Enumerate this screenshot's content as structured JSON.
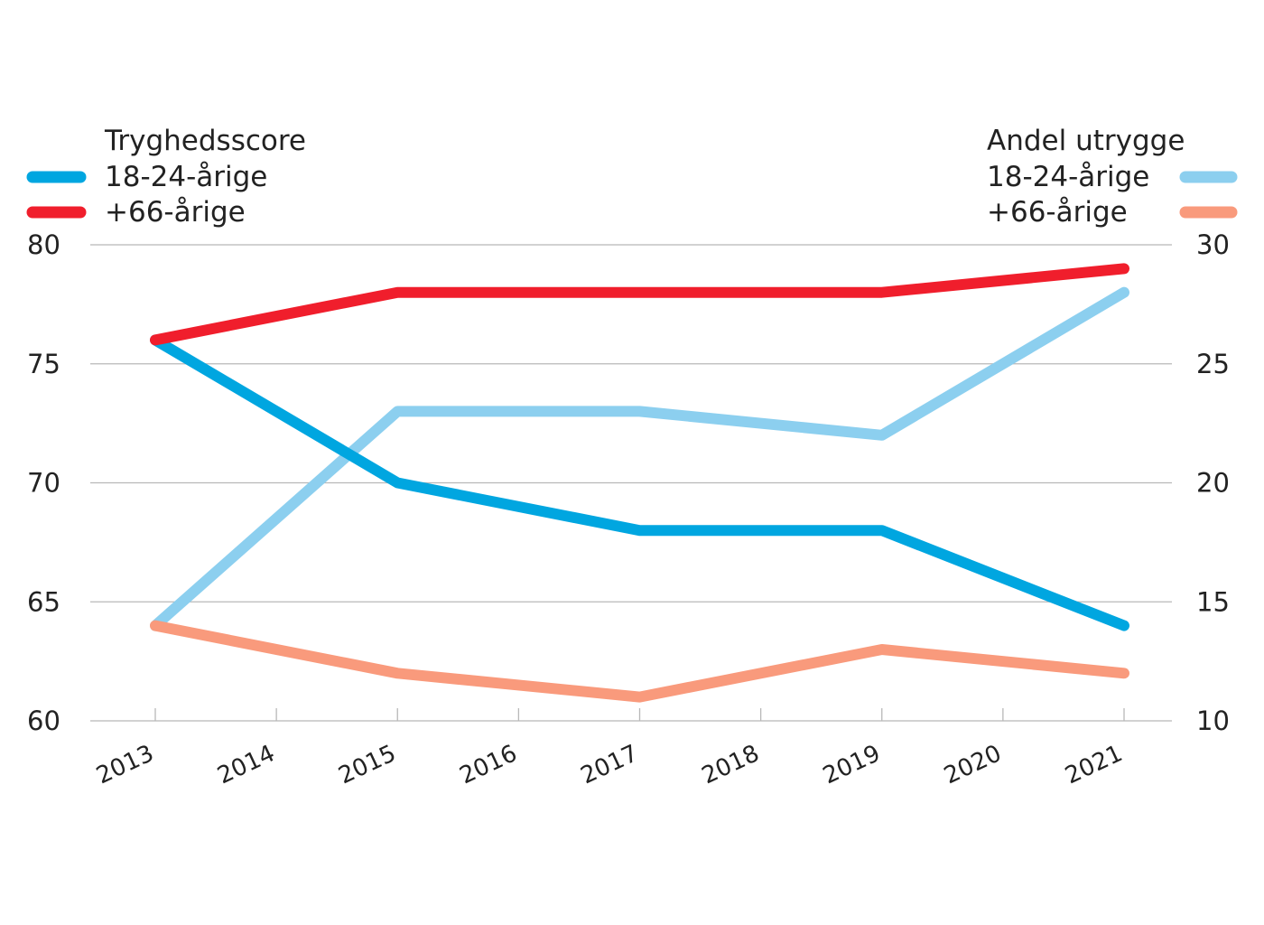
{
  "chart_data": {
    "type": "line",
    "x": [
      "2013",
      "2014",
      "2015",
      "2016",
      "2017",
      "2018",
      "2019",
      "2020",
      "2021"
    ],
    "y_left": {
      "ylim": [
        60,
        80
      ],
      "ticks": [
        60,
        65,
        70,
        75,
        80
      ]
    },
    "y_right": {
      "ylim": [
        10,
        30
      ],
      "ticks": [
        10,
        15,
        20,
        25,
        30
      ]
    },
    "grid": true,
    "legend_left": {
      "title": "Tryghedsscore",
      "entries": [
        {
          "series": 0,
          "label": "18-24-årige"
        },
        {
          "series": 1,
          "label": "+66-årige"
        }
      ]
    },
    "legend_right": {
      "title": "Andel utrygge",
      "entries": [
        {
          "series": 2,
          "label": "18-24-årige"
        },
        {
          "series": 3,
          "label": "+66-årige"
        }
      ]
    },
    "series": [
      {
        "name": "18-24-årige",
        "axis": "left",
        "color": "#00a6e0",
        "points": [
          [
            "2013",
            76
          ],
          [
            "2015",
            70
          ],
          [
            "2017",
            68
          ],
          [
            "2019",
            68
          ],
          [
            "2021",
            64
          ]
        ]
      },
      {
        "name": "+66-årige",
        "axis": "left",
        "color": "#f01e2c",
        "points": [
          [
            "2013",
            76
          ],
          [
            "2015",
            78
          ],
          [
            "2017",
            78
          ],
          [
            "2019",
            78
          ],
          [
            "2021",
            79
          ]
        ]
      },
      {
        "name": "18-24-årige",
        "axis": "right",
        "color": "#8ccfef",
        "points": [
          [
            "2013",
            14
          ],
          [
            "2015",
            23
          ],
          [
            "2017",
            23
          ],
          [
            "2019",
            22
          ],
          [
            "2021",
            28
          ]
        ]
      },
      {
        "name": "+66-årige",
        "axis": "right",
        "color": "#f99a7c",
        "points": [
          [
            "2013",
            14
          ],
          [
            "2015",
            12
          ],
          [
            "2017",
            11
          ],
          [
            "2019",
            13
          ],
          [
            "2021",
            12
          ]
        ]
      }
    ]
  }
}
